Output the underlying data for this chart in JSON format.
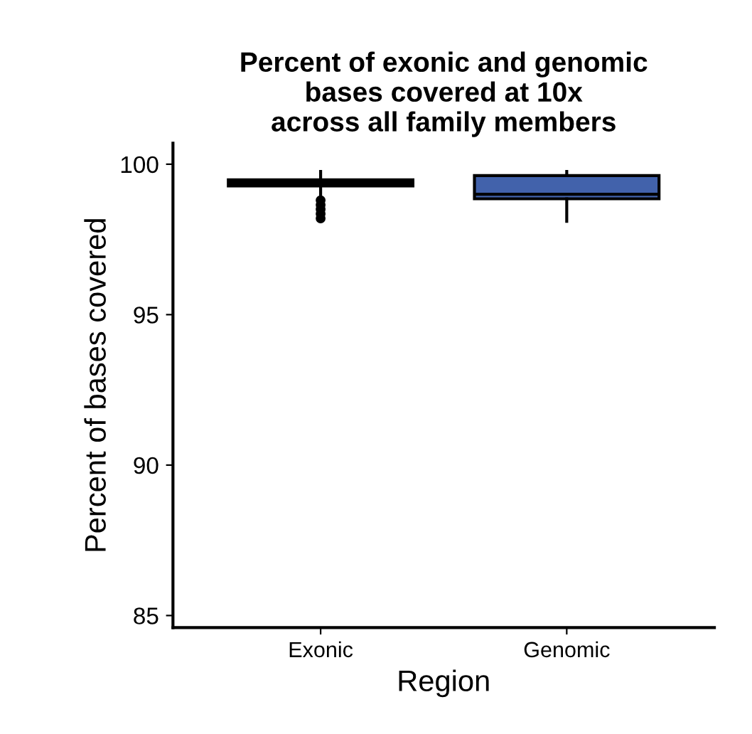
{
  "chart_data": {
    "type": "box",
    "title": "Percent of exonic and genomic\nbases covered at 10x\nacross all family members",
    "xlabel": "Region",
    "ylabel": "Percent of bases covered",
    "categories": [
      "Exonic",
      "Genomic"
    ],
    "series": [
      {
        "color": "#000000",
        "boxes": [
          {
            "low": 99.0,
            "q1": 99.28,
            "median": 99.38,
            "q3": 99.48,
            "high": 99.76,
            "outliers": [
              98.2,
              98.35,
              98.5,
              98.65,
              98.8
            ]
          },
          null
        ]
      },
      {
        "color": "#4262ab",
        "boxes": [
          null,
          {
            "low": 98.1,
            "q1": 98.85,
            "median": 99.0,
            "q3": 99.62,
            "high": 99.76
          }
        ]
      }
    ],
    "ylim": [
      84.6,
      100.7
    ],
    "yticks": [
      85,
      90,
      95,
      100
    ],
    "grid": false
  }
}
